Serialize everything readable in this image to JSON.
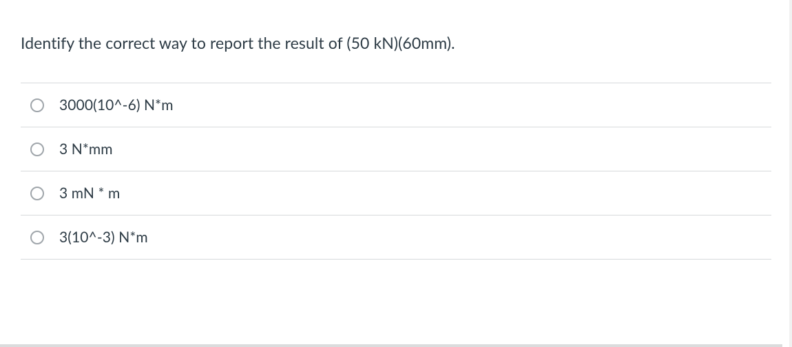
{
  "question": {
    "text": "Identify the correct way to report the result of (50 kN)(60mm).",
    "text_color": "#2d3b45",
    "font_size": 23
  },
  "options": [
    {
      "label": "3000(10^-6) N*m"
    },
    {
      "label": "3 N*mm"
    },
    {
      "label": "3 mN * m"
    },
    {
      "label": "3(10^-3) N*m"
    }
  ],
  "style": {
    "border_color": "#d6d9db",
    "radio_border_color": "#9fa5aa",
    "option_text_color": "#2d3b45",
    "option_font_size": 21,
    "background_color": "#ffffff"
  }
}
